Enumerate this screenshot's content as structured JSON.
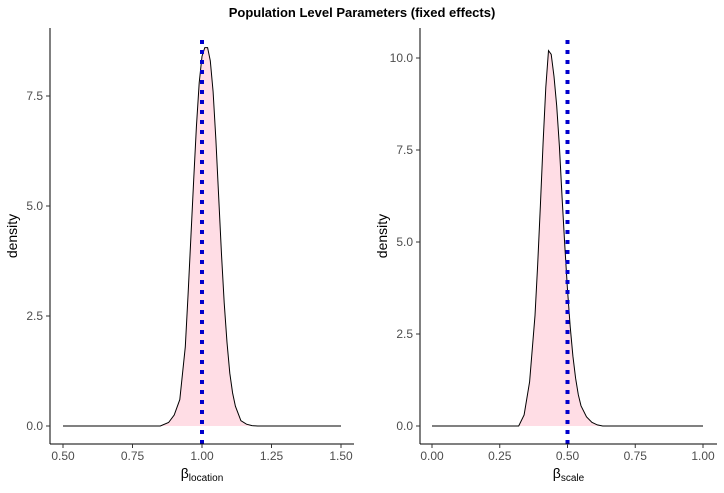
{
  "title": "Population Level Parameters (fixed effects)",
  "chart_data": [
    {
      "type": "area",
      "xlabel": "β",
      "xlabel_subscript": "location",
      "ylabel": "density",
      "xlim": [
        0.5,
        1.5
      ],
      "ylim": [
        0,
        8.7
      ],
      "xticks": [
        0.5,
        0.75,
        1.0,
        1.25,
        1.5
      ],
      "xtick_labels": [
        "0.50",
        "0.75",
        "1.00",
        "1.25",
        "1.50"
      ],
      "yticks": [
        0,
        2.5,
        5.0,
        7.5
      ],
      "ytick_labels": [
        "0.0",
        "2.5",
        "5.0",
        "7.5"
      ],
      "fill_color": "#ffdde5",
      "line_color": "#000000",
      "reference_line": {
        "x": 1.0,
        "style": "dotted",
        "color": "#0000cc"
      },
      "density": {
        "x": [
          0.5,
          0.85,
          0.88,
          0.9,
          0.92,
          0.94,
          0.95,
          0.96,
          0.97,
          0.98,
          0.99,
          1.0,
          1.01,
          1.02,
          1.03,
          1.04,
          1.05,
          1.06,
          1.07,
          1.08,
          1.09,
          1.1,
          1.11,
          1.12,
          1.14,
          1.16,
          1.18,
          1.2,
          1.5
        ],
        "y": [
          0.0,
          0.0,
          0.08,
          0.25,
          0.6,
          1.8,
          3.0,
          4.3,
          5.6,
          6.8,
          7.8,
          8.4,
          8.6,
          8.6,
          8.3,
          7.6,
          6.5,
          5.2,
          3.9,
          2.8,
          1.9,
          1.2,
          0.75,
          0.45,
          0.12,
          0.04,
          0.01,
          0.0,
          0.0
        ]
      }
    },
    {
      "type": "area",
      "xlabel": "β",
      "xlabel_subscript": "scale",
      "ylabel": "density",
      "xlim": [
        0.0,
        1.0
      ],
      "ylim": [
        0,
        10.3
      ],
      "xticks": [
        0.0,
        0.25,
        0.5,
        0.75,
        1.0
      ],
      "xtick_labels": [
        "0.00",
        "0.25",
        "0.50",
        "0.75",
        "1.00"
      ],
      "yticks": [
        0,
        2.5,
        5.0,
        7.5,
        10.0
      ],
      "ytick_labels": [
        "0.0",
        "2.5",
        "5.0",
        "7.5",
        "10.0"
      ],
      "fill_color": "#ffdde5",
      "line_color": "#000000",
      "reference_line": {
        "x": 0.5,
        "style": "dotted",
        "color": "#0000cc"
      },
      "density": {
        "x": [
          0.0,
          0.32,
          0.34,
          0.36,
          0.38,
          0.39,
          0.4,
          0.41,
          0.42,
          0.43,
          0.44,
          0.45,
          0.46,
          0.47,
          0.48,
          0.49,
          0.5,
          0.51,
          0.52,
          0.53,
          0.54,
          0.55,
          0.57,
          0.59,
          0.61,
          0.63,
          1.0
        ],
        "y": [
          0.0,
          0.0,
          0.3,
          1.2,
          3.0,
          4.4,
          6.0,
          7.7,
          9.2,
          10.2,
          10.1,
          9.5,
          8.7,
          7.6,
          6.2,
          4.9,
          3.7,
          2.7,
          1.9,
          1.3,
          0.85,
          0.55,
          0.25,
          0.1,
          0.03,
          0.0,
          0.0
        ]
      }
    }
  ]
}
